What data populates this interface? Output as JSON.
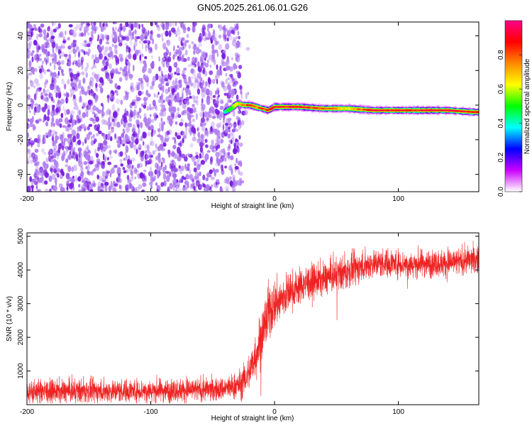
{
  "chart_data": [
    {
      "type": "heatmap",
      "title": "GN05.2025.261.06.01.G26",
      "xlabel": "Height of straight line (km)",
      "ylabel": "Frequency (Hz)",
      "xlim": [
        -200,
        165
      ],
      "ylim": [
        -50,
        48
      ],
      "xticks": [
        -200,
        -100,
        0,
        100
      ],
      "yticks": [
        -40,
        -20,
        0,
        20,
        40
      ],
      "noise_region": {
        "x_range": [
          -200,
          -27
        ],
        "y_range": [
          -50,
          48
        ],
        "typical_amplitude": 0.1
      },
      "signal_ridge": {
        "x": [
          -40,
          -35,
          -30,
          -25,
          -20,
          -15,
          -10,
          -5,
          0,
          20,
          40,
          60,
          80,
          100,
          120,
          140,
          160,
          165
        ],
        "frequency": [
          -4,
          -2,
          1,
          0,
          0,
          -1,
          -2,
          -3,
          -1,
          -1,
          -2,
          -2,
          -3,
          -3,
          -3,
          -3,
          -4,
          -4
        ],
        "amplitude": [
          0.4,
          0.5,
          0.6,
          0.7,
          0.8,
          0.8,
          0.8,
          0.8,
          0.9,
          0.9,
          0.75,
          0.6,
          0.9,
          0.9,
          0.9,
          0.9,
          0.85,
          0.8
        ]
      },
      "colorbar": {
        "label": "Normalized spectral amplitude",
        "range": [
          0,
          1
        ],
        "ticks": [
          0.0,
          0.2,
          0.4,
          0.6,
          0.8
        ],
        "tick_labels": [
          "0.0",
          "0.2",
          "0.4",
          "0.6",
          "0.8"
        ],
        "colors": [
          "#ffffff",
          "#cc00ff",
          "#0000ff",
          "#00ffff",
          "#00ff00",
          "#ffff00",
          "#ff8800",
          "#ff0000",
          "#ff0088"
        ]
      }
    },
    {
      "type": "line",
      "xlabel": "Height of straight line (km)",
      "ylabel": "SNR (10 * v/v)",
      "xlim": [
        -200,
        165
      ],
      "ylim": [
        0,
        5100
      ],
      "xticks": [
        -200,
        -100,
        0,
        100
      ],
      "yticks": [
        1000,
        2000,
        3000,
        4000,
        5000
      ],
      "series": [
        {
          "name": "SNR",
          "color": "#ee2222",
          "x": [
            -200,
            -150,
            -100,
            -60,
            -45,
            -35,
            -28,
            -25,
            -20,
            -15,
            -10,
            -5,
            0,
            5,
            10,
            15,
            20,
            25,
            30,
            40,
            50,
            60,
            70,
            80,
            90,
            100,
            110,
            120,
            130,
            140,
            150,
            160,
            165
          ],
          "mean": [
            400,
            400,
            420,
            440,
            450,
            520,
            600,
            700,
            1000,
            1500,
            2100,
            2700,
            3000,
            3100,
            3300,
            3400,
            3500,
            3600,
            3650,
            3750,
            3850,
            3950,
            4100,
            4200,
            4200,
            4200,
            4150,
            4200,
            4200,
            4200,
            4250,
            4300,
            4300
          ],
          "spread": [
            280,
            280,
            280,
            280,
            280,
            300,
            350,
            400,
            450,
            600,
            700,
            700,
            600,
            550,
            500,
            450,
            420,
            420,
            420,
            400,
            400,
            400,
            380,
            350,
            350,
            330,
            330,
            330,
            330,
            330,
            330,
            330,
            330
          ]
        }
      ]
    }
  ]
}
